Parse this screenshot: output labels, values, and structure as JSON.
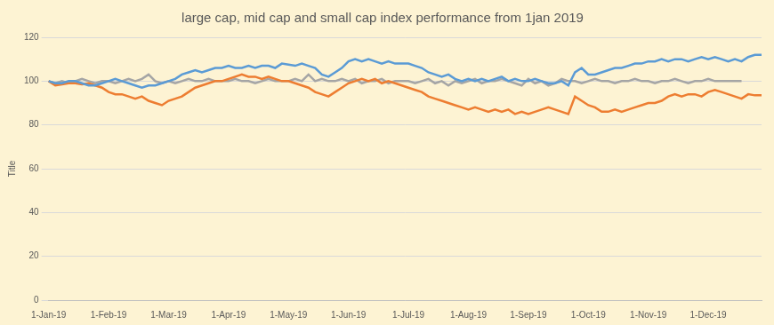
{
  "chart_data": {
    "type": "line",
    "title": "large cap, mid cap and small cap index performance from 1jan 2019",
    "y_label": "Title",
    "categories": [
      "1-Jan-19",
      null,
      null,
      null,
      null,
      null,
      null,
      null,
      null,
      "1-Feb-19",
      null,
      null,
      null,
      null,
      null,
      null,
      null,
      null,
      "1-Mar-19",
      null,
      null,
      null,
      null,
      null,
      null,
      null,
      null,
      "1-Apr-19",
      null,
      null,
      null,
      null,
      null,
      null,
      null,
      null,
      "1-May-19",
      null,
      null,
      null,
      null,
      null,
      null,
      null,
      null,
      "1-Jun-19",
      null,
      null,
      null,
      null,
      null,
      null,
      null,
      null,
      "1-Jul-19",
      null,
      null,
      null,
      null,
      null,
      null,
      null,
      null,
      "1-Aug-19",
      null,
      null,
      null,
      null,
      null,
      null,
      null,
      null,
      "1-Sep-19",
      null,
      null,
      null,
      null,
      null,
      null,
      null,
      null,
      "1-Oct-19",
      null,
      null,
      null,
      null,
      null,
      null,
      null,
      null,
      "1-Nov-19",
      null,
      null,
      null,
      null,
      null,
      null,
      null,
      null,
      "1-Dec-19",
      null,
      null,
      null,
      null,
      null,
      null,
      null,
      null
    ],
    "series": [
      {
        "color": "#5b9bd5",
        "values": [
          100,
          99,
          99,
          100,
          100,
          99,
          98,
          98,
          99,
          100,
          101,
          100,
          99,
          98,
          97,
          98,
          98,
          99,
          100,
          101,
          103,
          104,
          105,
          104,
          105,
          106,
          106,
          107,
          106,
          106,
          107,
          106,
          107,
          107,
          106,
          108,
          107.5,
          107,
          108,
          107,
          106,
          103,
          102,
          104,
          106,
          109,
          110,
          109,
          110,
          109,
          108,
          109,
          108,
          108,
          108,
          107,
          106,
          104,
          103,
          102,
          103,
          101,
          100,
          101,
          100,
          101,
          100,
          101,
          102,
          100,
          101,
          100,
          100,
          101,
          100,
          99,
          99,
          100,
          98,
          104,
          106,
          103,
          103,
          104,
          105,
          106,
          106,
          107,
          108,
          108,
          109,
          109,
          110,
          109,
          110,
          110,
          109,
          110,
          111,
          110,
          111,
          110,
          109,
          110,
          109,
          111,
          112,
          112
        ]
      },
      {
        "color": "#ed7d31",
        "values": [
          100,
          98,
          98.5,
          99,
          99,
          98.5,
          99,
          98,
          97,
          95,
          94,
          94,
          93,
          92,
          93,
          91,
          90,
          89,
          91,
          92,
          93,
          95,
          97,
          98,
          99,
          100,
          100,
          101,
          102,
          103,
          102,
          102,
          101,
          102,
          101,
          100,
          100,
          99,
          98,
          97,
          95,
          94,
          93,
          95,
          97,
          99,
          100,
          101,
          100,
          101,
          99,
          100,
          99,
          98,
          97,
          96,
          95,
          93,
          92,
          91,
          90,
          89,
          88,
          87,
          88,
          87,
          86,
          87,
          86,
          87,
          85,
          86,
          85,
          86,
          87,
          88,
          87,
          86,
          85,
          93,
          91,
          89,
          88,
          86,
          86,
          87,
          86,
          87,
          88,
          89,
          90,
          90,
          91,
          93,
          94,
          93,
          94,
          94,
          93,
          95,
          96,
          95,
          94,
          93,
          92,
          94,
          93.5,
          93.5
        ]
      },
      {
        "color": "#a5a5a5",
        "values": [
          100,
          99,
          100,
          99,
          100,
          101,
          100,
          99,
          100,
          100,
          99,
          100,
          101,
          100,
          101,
          103,
          100,
          99,
          100,
          99,
          100,
          101,
          100,
          100,
          101,
          100,
          100,
          100,
          101,
          100,
          100,
          99,
          100,
          101,
          100,
          100,
          100,
          101,
          100,
          103,
          100,
          101,
          100,
          100,
          101,
          100,
          101,
          99,
          100,
          100,
          101,
          99,
          100,
          100,
          100,
          99,
          100,
          101,
          99,
          100,
          98,
          100,
          99,
          100,
          101,
          99,
          100,
          100,
          101,
          100,
          99,
          98,
          101,
          99,
          100,
          98,
          99,
          101,
          100,
          100,
          99,
          100,
          101,
          100,
          100,
          99,
          100,
          100,
          101,
          100,
          100,
          99,
          100,
          100,
          101,
          100,
          99,
          100,
          100,
          101,
          100,
          100,
          100,
          100,
          100,
          null,
          null,
          null
        ]
      }
    ],
    "ylim": [
      0,
      120
    ],
    "yticks": [
      0,
      20,
      40,
      60,
      80,
      100,
      120
    ],
    "grid": true
  }
}
